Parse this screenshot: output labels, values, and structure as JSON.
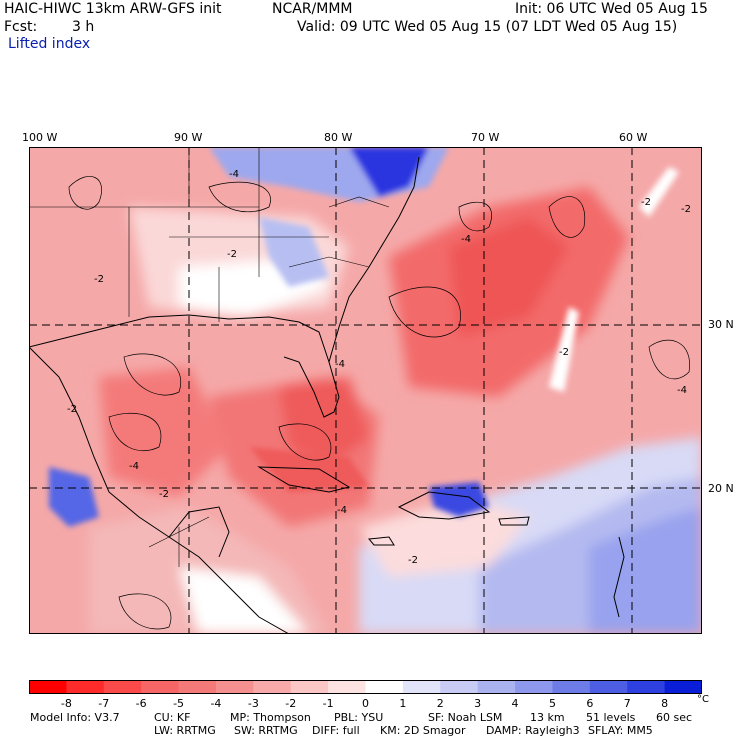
{
  "header": {
    "model": "HAIC-HIWC 13km ARW-GFS init",
    "org": "NCAR/MMM",
    "init": "Init: 06 UTC Wed 05 Aug 15",
    "fcst_label": "Fcst:",
    "fcst_value": "3 h",
    "valid": "Valid: 09 UTC Wed 05 Aug 15 (07 LDT Wed 05 Aug 15)",
    "field": "Lifted index"
  },
  "map": {
    "lon_labels": [
      "100 W",
      "90 W",
      "80 W",
      "70 W",
      "60 W"
    ],
    "lat_labels": [
      "30 N",
      "20 N"
    ],
    "contour_labels": [
      "-2",
      "-4"
    ],
    "colors": {
      "strong_negative": "#ff2a2a",
      "negative": "#f47a7a",
      "weak_negative": "#fbc6c6",
      "neutral": "#ffffff",
      "weak_positive": "#c8ccf4",
      "positive": "#8090ec",
      "strong_positive": "#1a22e0"
    }
  },
  "colorbar": {
    "labels": [
      "-8",
      "-7",
      "-6",
      "-5",
      "-4",
      "-3",
      "-2",
      "-1",
      "0",
      "1",
      "2",
      "3",
      "4",
      "5",
      "6",
      "7",
      "8"
    ],
    "unit": "°C"
  },
  "footer": {
    "line1": [
      "Model Info: V3.7",
      "CU: KF",
      "MP: Thompson",
      "PBL: YSU",
      "SF: Noah LSM",
      "13 km",
      "51 levels",
      "60 sec"
    ],
    "line2": [
      "LW: RRTMG",
      "SW: RRTMG",
      "DIFF: full",
      "KM: 2D Smagor",
      "DAMP: Rayleigh3",
      "SFLAY: MM5"
    ]
  }
}
